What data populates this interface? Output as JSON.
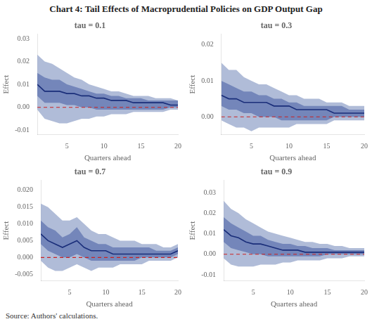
{
  "title": "Chart 4: Tail Effects of Macroprudential Policies on GDP Output Gap",
  "annotations": [
    "Source: Authors' calculations."
  ],
  "chart_data": [
    {
      "type": "line",
      "title": "tau = 0.1",
      "xlabel": "Quarters ahead",
      "ylabel": "Effect",
      "x": [
        1,
        2,
        3,
        4,
        5,
        6,
        7,
        8,
        9,
        10,
        11,
        12,
        13,
        14,
        15,
        16,
        17,
        18,
        19,
        20
      ],
      "xlim": [
        1,
        20
      ],
      "xticks": [
        5,
        10,
        15,
        20
      ],
      "ylim": [
        -0.012,
        0.032
      ],
      "yticks": [
        -0.01,
        {
          "value": 0.0,
          "label": "0.00"
        },
        0.01,
        0.02,
        0.03
      ],
      "grid": false,
      "series": [
        {
          "type": "band",
          "color": "#8fa0c8",
          "lower": [
            -0.001,
            -0.005,
            -0.006,
            -0.007,
            -0.007,
            -0.006,
            -0.005,
            -0.005,
            -0.004,
            -0.004,
            -0.003,
            -0.003,
            -0.003,
            -0.002,
            -0.002,
            -0.002,
            -0.002,
            -0.002,
            -0.001,
            -0.001
          ],
          "upper": [
            0.023,
            0.02,
            0.019,
            0.017,
            0.015,
            0.013,
            0.012,
            0.01,
            0.009,
            0.008,
            0.007,
            0.007,
            0.006,
            0.005,
            0.005,
            0.005,
            0.004,
            0.004,
            0.004,
            0.003
          ]
        },
        {
          "type": "band",
          "color": "#5a6fad",
          "lower": [
            0.005,
            0.002,
            0.002,
            0.002,
            0.001,
            0.001,
            0.0,
            0.0,
            -0.001,
            -0.001,
            -0.001,
            -0.001,
            -0.001,
            -0.001,
            -0.001,
            -0.001,
            -0.001,
            -0.001,
            0.0,
            0.0
          ],
          "upper": [
            0.015,
            0.013,
            0.012,
            0.012,
            0.01,
            0.009,
            0.008,
            0.007,
            0.006,
            0.006,
            0.005,
            0.005,
            0.004,
            0.004,
            0.004,
            0.003,
            0.003,
            0.003,
            0.003,
            0.003
          ]
        },
        {
          "type": "line",
          "color": "#1a2e7a",
          "values": [
            0.01,
            0.007,
            0.007,
            0.007,
            0.006,
            0.006,
            0.005,
            0.005,
            0.004,
            0.004,
            0.003,
            0.003,
            0.003,
            0.002,
            0.002,
            0.002,
            0.002,
            0.002,
            0.001,
            0.001
          ]
        }
      ],
      "reference_lines": [
        {
          "y": 0,
          "color": "#cc2222",
          "line_style": "dashed"
        }
      ]
    },
    {
      "type": "line",
      "title": "tau = 0.3",
      "xlabel": "Quarters ahead",
      "ylabel": "Effect",
      "x": [
        1,
        2,
        3,
        4,
        5,
        6,
        7,
        8,
        9,
        10,
        11,
        12,
        13,
        14,
        15,
        16,
        17,
        18,
        19,
        20
      ],
      "xlim": [
        1,
        20
      ],
      "xticks": [
        5,
        10,
        15,
        20
      ],
      "ylim": [
        -0.005,
        0.023
      ],
      "yticks": [
        {
          "value": 0.0,
          "label": "0.00"
        },
        0.01,
        0.02
      ],
      "grid": false,
      "series": [
        {
          "type": "band",
          "color": "#8fa0c8",
          "lower": [
            -0.001,
            -0.002,
            -0.003,
            -0.003,
            -0.004,
            -0.003,
            -0.003,
            -0.003,
            -0.003,
            -0.003,
            -0.002,
            -0.002,
            -0.002,
            -0.002,
            -0.002,
            -0.001,
            -0.001,
            -0.001,
            -0.001,
            -0.001
          ],
          "upper": [
            0.015,
            0.013,
            0.013,
            0.011,
            0.01,
            0.009,
            0.009,
            0.008,
            0.007,
            0.006,
            0.006,
            0.005,
            0.005,
            0.005,
            0.004,
            0.004,
            0.004,
            0.003,
            0.003,
            0.003
          ]
        },
        {
          "type": "band",
          "color": "#5a6fad",
          "lower": [
            0.003,
            0.002,
            0.002,
            0.001,
            0.001,
            0.0,
            0.0,
            0.0,
            -0.001,
            -0.001,
            -0.001,
            -0.001,
            -0.001,
            -0.001,
            -0.001,
            0.0,
            0.0,
            0.0,
            0.0,
            0.0
          ],
          "upper": [
            0.01,
            0.009,
            0.008,
            0.007,
            0.007,
            0.006,
            0.006,
            0.005,
            0.005,
            0.004,
            0.004,
            0.003,
            0.003,
            0.003,
            0.003,
            0.003,
            0.003,
            0.002,
            0.002,
            0.002
          ]
        },
        {
          "type": "line",
          "color": "#1a2e7a",
          "values": [
            0.006,
            0.005,
            0.005,
            0.004,
            0.004,
            0.004,
            0.004,
            0.003,
            0.003,
            0.003,
            0.002,
            0.002,
            0.002,
            0.002,
            0.002,
            0.001,
            0.001,
            0.001,
            0.001,
            0.001
          ]
        }
      ],
      "reference_lines": [
        {
          "y": 0,
          "color": "#cc2222",
          "line_style": "dashed"
        }
      ]
    },
    {
      "type": "line",
      "title": "tau = 0.7",
      "xlabel": "Quarters ahead",
      "ylabel": "Effect",
      "x": [
        1,
        2,
        3,
        4,
        5,
        6,
        7,
        8,
        9,
        10,
        11,
        12,
        13,
        14,
        15,
        16,
        17,
        18,
        19,
        20
      ],
      "xlim": [
        1,
        20
      ],
      "xticks": [
        5,
        10,
        15,
        20
      ],
      "ylim": [
        -0.007,
        0.023
      ],
      "yticks": [
        -0.005,
        {
          "value": 0.0,
          "label": "0.000"
        },
        0.005,
        {
          "value": 0.01,
          "label": "0.010"
        },
        0.015,
        {
          "value": 0.02,
          "label": "0.020"
        }
      ],
      "grid": false,
      "series": [
        {
          "type": "band",
          "color": "#8fa0c8",
          "lower": [
            -0.001,
            -0.003,
            -0.004,
            -0.004,
            -0.003,
            -0.002,
            -0.003,
            -0.004,
            -0.003,
            -0.003,
            -0.003,
            -0.002,
            -0.002,
            -0.002,
            -0.002,
            -0.001,
            -0.001,
            -0.001,
            -0.001,
            0.0
          ],
          "upper": [
            0.016,
            0.015,
            0.013,
            0.011,
            0.011,
            0.012,
            0.01,
            0.008,
            0.007,
            0.007,
            0.006,
            0.005,
            0.005,
            0.005,
            0.004,
            0.004,
            0.004,
            0.003,
            0.003,
            0.004
          ]
        },
        {
          "type": "band",
          "color": "#5a6fad",
          "lower": [
            0.004,
            0.002,
            0.001,
            0.0,
            0.0,
            0.001,
            0.0,
            -0.001,
            -0.001,
            -0.001,
            -0.001,
            -0.001,
            -0.001,
            -0.001,
            0.0,
            0.0,
            0.0,
            0.0,
            0.0,
            0.001
          ],
          "upper": [
            0.011,
            0.009,
            0.008,
            0.006,
            0.007,
            0.009,
            0.006,
            0.005,
            0.004,
            0.004,
            0.003,
            0.003,
            0.003,
            0.003,
            0.003,
            0.003,
            0.002,
            0.002,
            0.002,
            0.003
          ]
        },
        {
          "type": "line",
          "color": "#1a2e7a",
          "values": [
            0.007,
            0.005,
            0.004,
            0.003,
            0.004,
            0.005,
            0.003,
            0.002,
            0.002,
            0.002,
            0.001,
            0.001,
            0.001,
            0.001,
            0.001,
            0.001,
            0.001,
            0.001,
            0.001,
            0.002
          ]
        }
      ],
      "reference_lines": [
        {
          "y": 0,
          "color": "#cc2222",
          "line_style": "dashed"
        }
      ]
    },
    {
      "type": "line",
      "title": "tau = 0.9",
      "xlabel": "Quarters ahead",
      "ylabel": "Effect",
      "x": [
        1,
        2,
        3,
        4,
        5,
        6,
        7,
        8,
        9,
        10,
        11,
        12,
        13,
        14,
        15,
        16,
        17,
        18,
        19,
        20
      ],
      "xlim": [
        1,
        20
      ],
      "xticks": [
        5,
        10,
        15,
        20
      ],
      "ylim": [
        -0.013,
        0.036
      ],
      "yticks": [
        -0.01,
        {
          "value": 0.0,
          "label": "0.00"
        },
        0.01,
        0.02,
        0.03
      ],
      "grid": false,
      "series": [
        {
          "type": "band",
          "color": "#8fa0c8",
          "lower": [
            -0.002,
            -0.005,
            -0.006,
            -0.006,
            -0.006,
            -0.005,
            -0.005,
            -0.005,
            -0.004,
            -0.004,
            -0.003,
            -0.003,
            -0.003,
            -0.003,
            -0.002,
            -0.002,
            -0.002,
            -0.001,
            -0.001,
            -0.001
          ],
          "upper": [
            0.026,
            0.022,
            0.02,
            0.017,
            0.015,
            0.013,
            0.011,
            0.01,
            0.009,
            0.008,
            0.007,
            0.006,
            0.006,
            0.005,
            0.005,
            0.004,
            0.004,
            0.003,
            0.003,
            0.003
          ]
        },
        {
          "type": "band",
          "color": "#5a6fad",
          "lower": [
            0.006,
            0.003,
            0.002,
            0.001,
            0.0,
            0.0,
            -0.001,
            -0.001,
            -0.001,
            -0.001,
            -0.001,
            -0.001,
            -0.001,
            -0.001,
            0.0,
            0.0,
            0.0,
            0.0,
            0.0,
            0.0
          ],
          "upper": [
            0.018,
            0.015,
            0.013,
            0.011,
            0.009,
            0.009,
            0.007,
            0.006,
            0.005,
            0.005,
            0.004,
            0.004,
            0.003,
            0.003,
            0.003,
            0.002,
            0.002,
            0.002,
            0.002,
            0.002
          ]
        },
        {
          "type": "line",
          "color": "#1a2e7a",
          "values": [
            0.012,
            0.009,
            0.008,
            0.006,
            0.005,
            0.005,
            0.004,
            0.003,
            0.002,
            0.002,
            0.002,
            0.001,
            0.001,
            0.001,
            0.001,
            0.001,
            0.001,
            0.001,
            0.001,
            0.001
          ]
        }
      ],
      "reference_lines": [
        {
          "y": 0,
          "color": "#cc2222",
          "line_style": "dashed"
        }
      ]
    }
  ]
}
